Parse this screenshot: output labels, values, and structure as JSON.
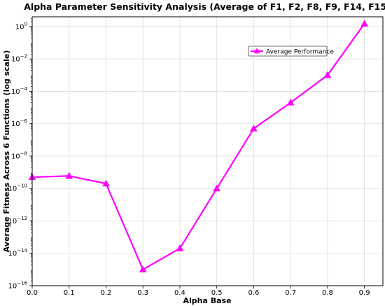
{
  "chart_data": {
    "type": "line",
    "title": "Alpha Parameter Sensitivity Analysis (Average of F1, F2, F8, F9, F14, F15)",
    "xlabel": "Alpha Base",
    "ylabel": "Average Fitness Across 6 Functions (log scale)",
    "xlim": [
      0.0,
      0.95
    ],
    "ylim": [
      1e-16,
      4
    ],
    "y_scale": "log",
    "grid": true,
    "legend_position": "upper-right",
    "x_ticks": [
      "0.0",
      "0.1",
      "0.2",
      "0.3",
      "0.4",
      "0.5",
      "0.6",
      "0.7",
      "0.8",
      "0.9"
    ],
    "y_tick_exponents": [
      "0",
      "−2",
      "−4",
      "−6",
      "−8",
      "−10",
      "−12",
      "−14",
      "−16"
    ],
    "y_tick_base": "10",
    "series": [
      {
        "name": "Average Performance",
        "color": "#ff00ff",
        "marker": "triangle",
        "x": [
          0.0,
          0.1,
          0.2,
          0.3,
          0.4,
          0.5,
          0.6,
          0.7,
          0.8,
          0.9
        ],
        "y": [
          5e-10,
          6e-10,
          2e-10,
          1e-15,
          2e-14,
          1e-10,
          5e-07,
          2e-05,
          0.001,
          1.5
        ]
      }
    ]
  }
}
